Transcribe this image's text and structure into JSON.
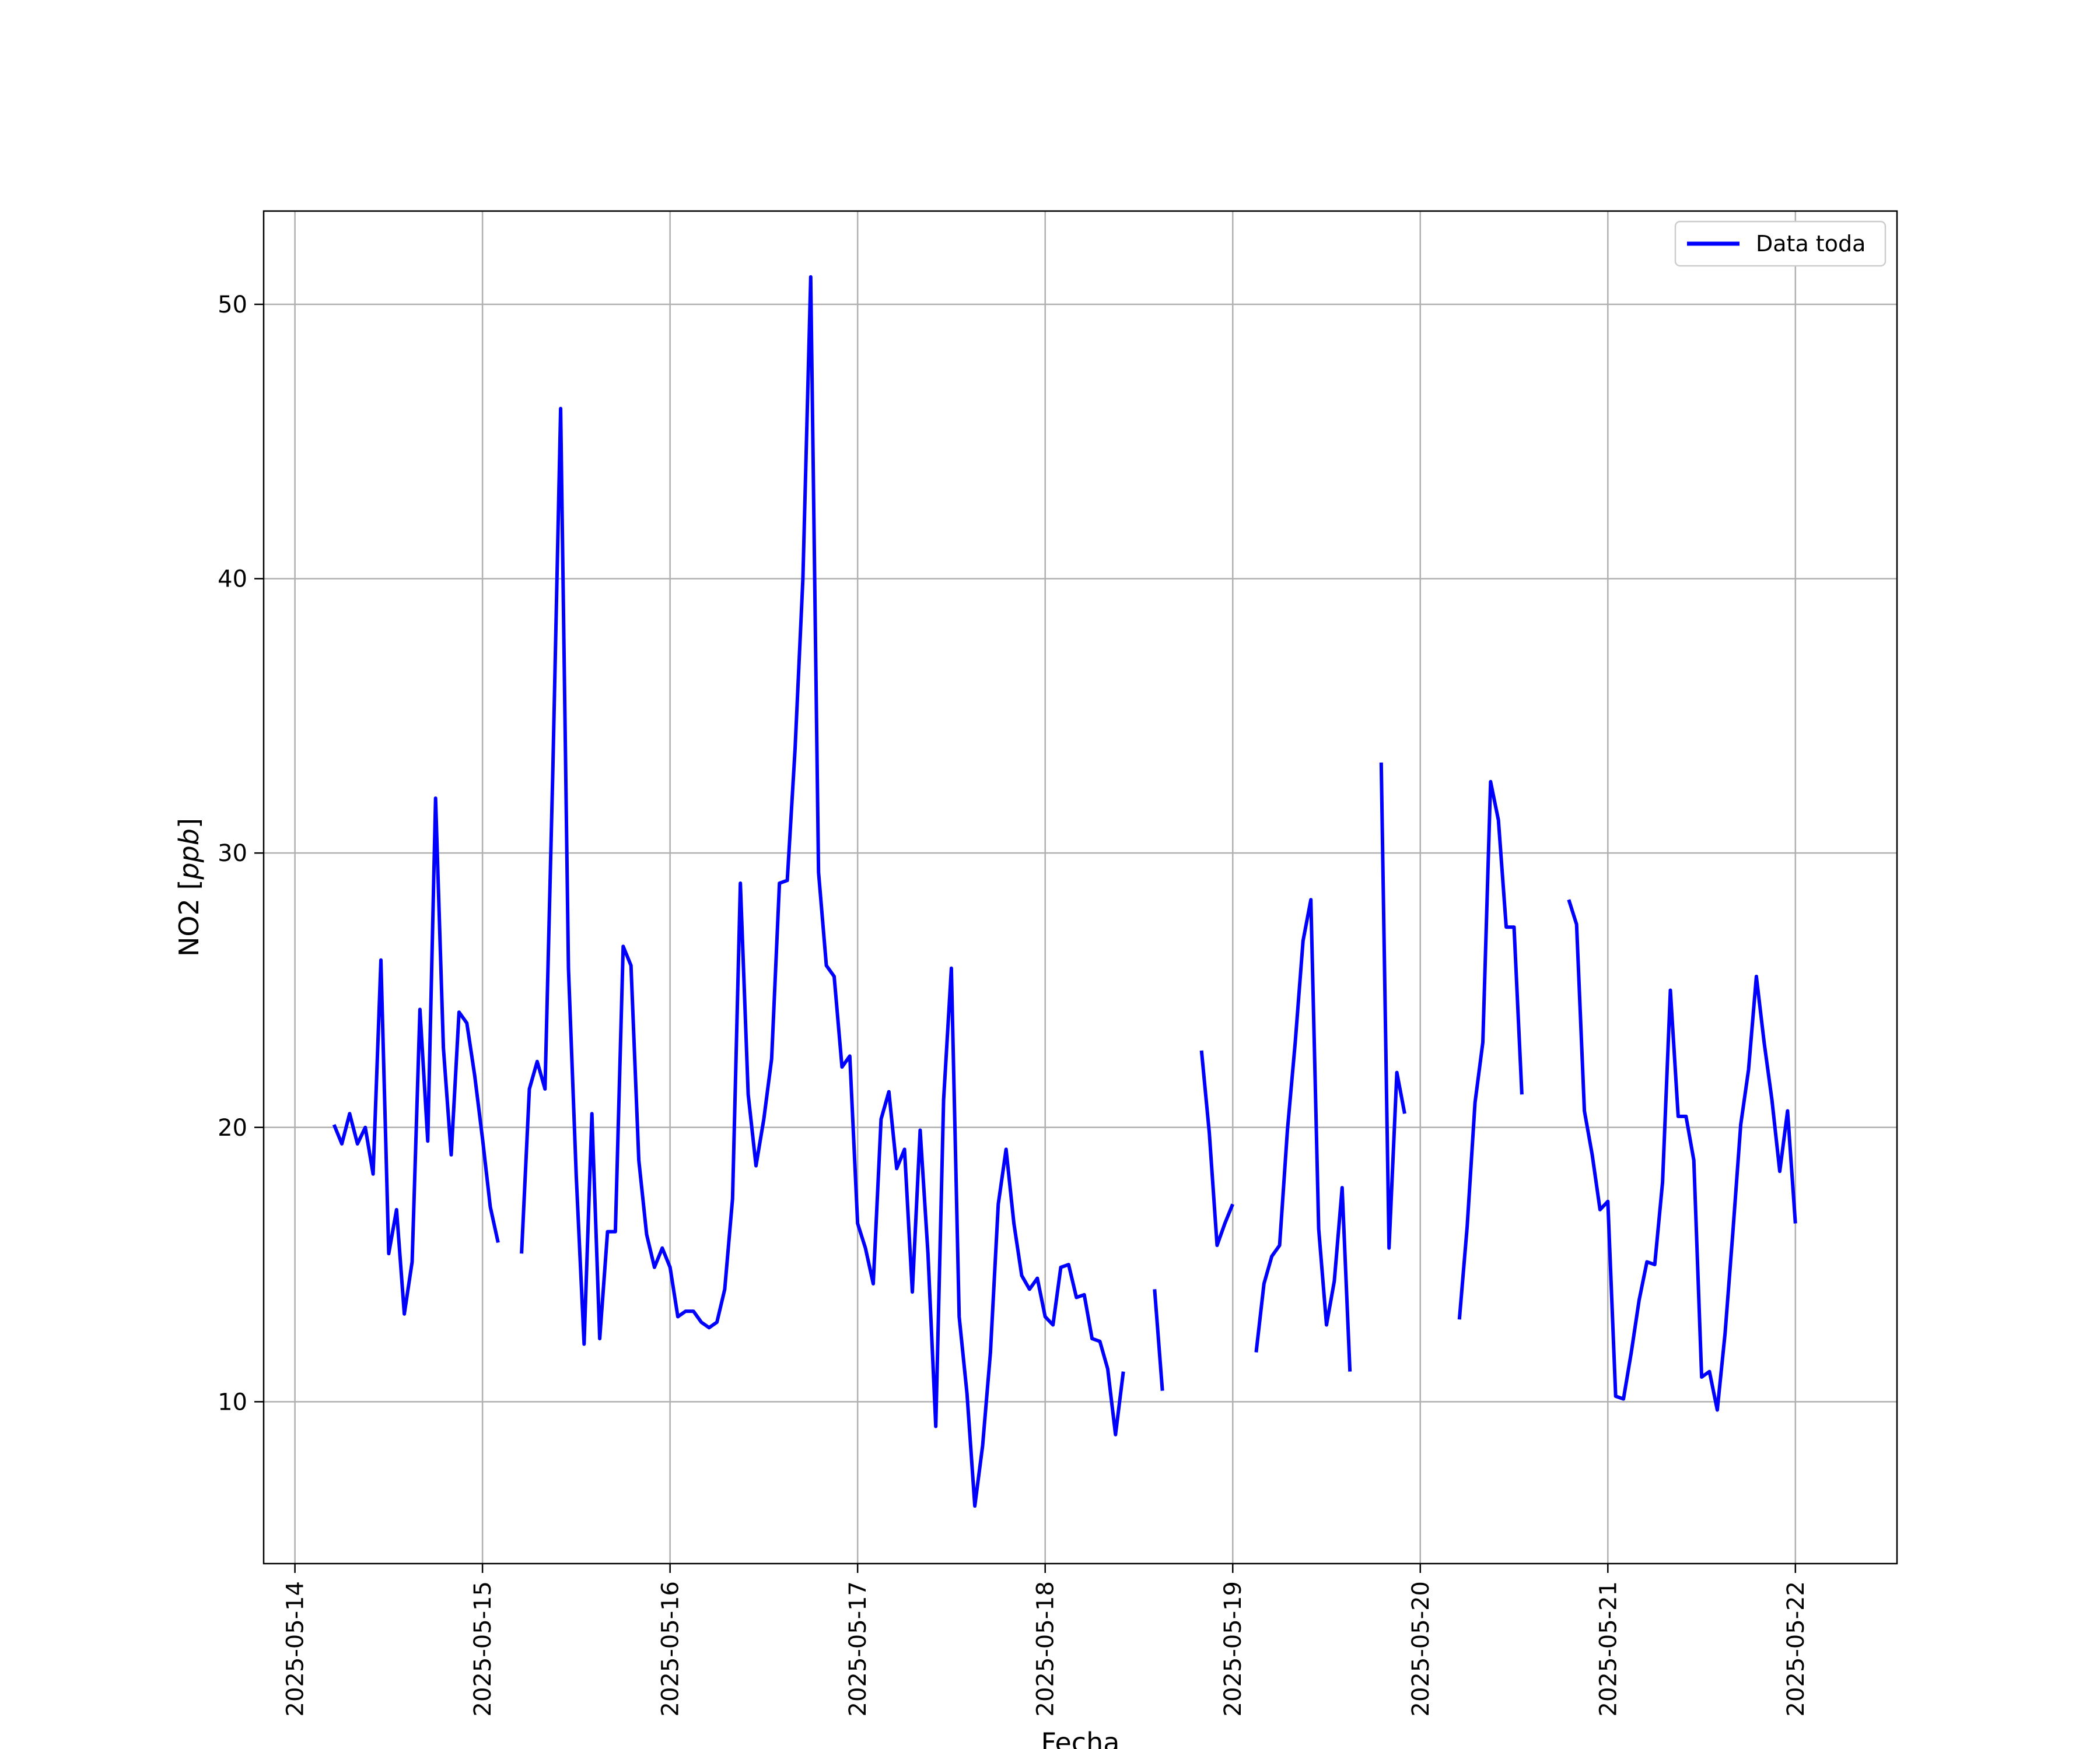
{
  "chart_data": {
    "type": "line",
    "title": "",
    "xlabel": "Fecha",
    "ylabel_parts": [
      "NO2 [",
      "ppb",
      "]"
    ],
    "x_ticks": [
      "2025-05-14",
      "2025-05-15",
      "2025-05-16",
      "2025-05-17",
      "2025-05-18",
      "2025-05-19",
      "2025-05-20",
      "2025-05-21",
      "2025-05-22"
    ],
    "y_ticks": [
      10,
      20,
      30,
      40,
      50
    ],
    "xlim": [
      "2025-05-13T20:00",
      "2025-05-22T13:00"
    ],
    "ylim": [
      4.1,
      53.4
    ],
    "grid": true,
    "legend_position": "top-right",
    "series": [
      {
        "name": "Data toda",
        "color": "#0000ff",
        "segments": [
          [
            [
              "2025-05-14T05:00",
              20.1
            ],
            [
              "2025-05-14T06:00",
              19.4
            ],
            [
              "2025-05-14T07:00",
              20.5
            ],
            [
              "2025-05-14T08:00",
              19.4
            ],
            [
              "2025-05-14T09:00",
              20.0
            ],
            [
              "2025-05-14T10:00",
              18.3
            ],
            [
              "2025-05-14T11:00",
              26.1
            ],
            [
              "2025-05-14T12:00",
              15.4
            ],
            [
              "2025-05-14T13:00",
              17.0
            ],
            [
              "2025-05-14T14:00",
              13.2
            ],
            [
              "2025-05-14T15:00",
              15.1
            ],
            [
              "2025-05-14T16:00",
              24.3
            ],
            [
              "2025-05-14T17:00",
              19.5
            ],
            [
              "2025-05-14T18:00",
              32.0
            ],
            [
              "2025-05-14T19:00",
              22.9
            ],
            [
              "2025-05-14T20:00",
              19.0
            ],
            [
              "2025-05-14T21:00",
              24.2
            ],
            [
              "2025-05-14T22:00",
              23.8
            ],
            [
              "2025-05-14T23:00",
              21.9
            ],
            [
              "2025-05-15T00:00",
              19.6
            ],
            [
              "2025-05-15T01:00",
              17.1
            ],
            [
              "2025-05-15T02:00",
              15.8
            ]
          ],
          [
            [
              "2025-05-15T05:00",
              15.4
            ],
            [
              "2025-05-15T06:00",
              21.4
            ],
            [
              "2025-05-15T07:00",
              22.4
            ],
            [
              "2025-05-15T08:00",
              21.4
            ],
            [
              "2025-05-15T09:00",
              33.0
            ],
            [
              "2025-05-15T10:00",
              46.2
            ],
            [
              "2025-05-15T11:00",
              25.8
            ],
            [
              "2025-05-15T12:00",
              18.2
            ],
            [
              "2025-05-15T13:00",
              12.1
            ],
            [
              "2025-05-15T14:00",
              20.5
            ],
            [
              "2025-05-15T15:00",
              12.3
            ],
            [
              "2025-05-15T16:00",
              16.2
            ],
            [
              "2025-05-15T17:00",
              16.2
            ],
            [
              "2025-05-15T18:00",
              26.6
            ],
            [
              "2025-05-15T19:00",
              25.9
            ],
            [
              "2025-05-15T20:00",
              18.8
            ],
            [
              "2025-05-15T21:00",
              16.1
            ],
            [
              "2025-05-15T22:00",
              14.9
            ],
            [
              "2025-05-15T23:00",
              15.6
            ],
            [
              "2025-05-16T00:00",
              14.9
            ],
            [
              "2025-05-16T01:00",
              13.1
            ],
            [
              "2025-05-16T02:00",
              13.3
            ],
            [
              "2025-05-16T03:00",
              13.3
            ],
            [
              "2025-05-16T04:00",
              12.9
            ],
            [
              "2025-05-16T05:00",
              12.7
            ],
            [
              "2025-05-16T06:00",
              12.9
            ],
            [
              "2025-05-16T07:00",
              14.1
            ],
            [
              "2025-05-16T08:00",
              17.4
            ],
            [
              "2025-05-16T09:00",
              28.9
            ],
            [
              "2025-05-16T10:00",
              21.2
            ],
            [
              "2025-05-16T11:00",
              18.6
            ],
            [
              "2025-05-16T12:00",
              20.3
            ],
            [
              "2025-05-16T13:00",
              22.5
            ],
            [
              "2025-05-16T14:00",
              28.9
            ],
            [
              "2025-05-16T15:00",
              29.0
            ],
            [
              "2025-05-16T16:00",
              33.8
            ],
            [
              "2025-05-16T17:00",
              40.0
            ],
            [
              "2025-05-16T18:00",
              51.0
            ],
            [
              "2025-05-16T19:00",
              29.3
            ],
            [
              "2025-05-16T20:00",
              25.9
            ],
            [
              "2025-05-16T21:00",
              25.5
            ],
            [
              "2025-05-16T22:00",
              22.2
            ],
            [
              "2025-05-16T23:00",
              22.6
            ],
            [
              "2025-05-17T00:00",
              16.5
            ],
            [
              "2025-05-17T01:00",
              15.6
            ],
            [
              "2025-05-17T02:00",
              14.3
            ],
            [
              "2025-05-17T03:00",
              20.3
            ],
            [
              "2025-05-17T04:00",
              21.3
            ],
            [
              "2025-05-17T05:00",
              18.5
            ],
            [
              "2025-05-17T06:00",
              19.2
            ],
            [
              "2025-05-17T07:00",
              14.0
            ],
            [
              "2025-05-17T08:00",
              19.9
            ],
            [
              "2025-05-17T09:00",
              15.4
            ],
            [
              "2025-05-17T10:00",
              9.1
            ],
            [
              "2025-05-17T11:00",
              21.0
            ],
            [
              "2025-05-17T12:00",
              25.8
            ],
            [
              "2025-05-17T13:00",
              13.1
            ],
            [
              "2025-05-17T14:00",
              10.3
            ],
            [
              "2025-05-17T15:00",
              6.2
            ],
            [
              "2025-05-17T16:00",
              8.4
            ],
            [
              "2025-05-17T17:00",
              11.8
            ],
            [
              "2025-05-17T18:00",
              17.2
            ],
            [
              "2025-05-17T19:00",
              19.2
            ],
            [
              "2025-05-17T20:00",
              16.5
            ],
            [
              "2025-05-17T21:00",
              14.6
            ],
            [
              "2025-05-17T22:00",
              14.1
            ],
            [
              "2025-05-17T23:00",
              14.5
            ],
            [
              "2025-05-18T00:00",
              13.1
            ],
            [
              "2025-05-18T01:00",
              12.8
            ],
            [
              "2025-05-18T02:00",
              14.9
            ],
            [
              "2025-05-18T03:00",
              15.0
            ],
            [
              "2025-05-18T04:00",
              13.8
            ],
            [
              "2025-05-18T05:00",
              13.9
            ],
            [
              "2025-05-18T06:00",
              12.3
            ],
            [
              "2025-05-18T07:00",
              12.2
            ],
            [
              "2025-05-18T08:00",
              11.2
            ],
            [
              "2025-05-18T09:00",
              8.8
            ],
            [
              "2025-05-18T10:00",
              11.1
            ]
          ],
          [
            [
              "2025-05-18T14:00",
              14.1
            ],
            [
              "2025-05-18T15:00",
              10.4
            ]
          ],
          [
            [
              "2025-05-18T20:00",
              22.8
            ],
            [
              "2025-05-18T21:00",
              19.8
            ],
            [
              "2025-05-18T22:00",
              15.7
            ],
            [
              "2025-05-18T23:00",
              16.5
            ],
            [
              "2025-05-19T00:00",
              17.2
            ]
          ],
          [
            [
              "2025-05-19T03:00",
              11.8
            ],
            [
              "2025-05-19T04:00",
              14.3
            ],
            [
              "2025-05-19T05:00",
              15.3
            ],
            [
              "2025-05-19T06:00",
              15.7
            ],
            [
              "2025-05-19T07:00",
              19.9
            ],
            [
              "2025-05-19T08:00",
              23.1
            ],
            [
              "2025-05-19T09:00",
              26.8
            ],
            [
              "2025-05-19T10:00",
              28.3
            ],
            [
              "2025-05-19T11:00",
              16.3
            ],
            [
              "2025-05-19T12:00",
              12.8
            ],
            [
              "2025-05-19T13:00",
              14.4
            ],
            [
              "2025-05-19T14:00",
              17.8
            ],
            [
              "2025-05-19T15:00",
              11.1
            ]
          ],
          [
            [
              "2025-05-19T19:00",
              33.3
            ],
            [
              "2025-05-19T20:00",
              15.6
            ],
            [
              "2025-05-19T21:00",
              22.0
            ],
            [
              "2025-05-19T22:00",
              20.5
            ]
          ],
          [
            [
              "2025-05-20T05:00",
              13.0
            ],
            [
              "2025-05-20T06:00",
              16.4
            ],
            [
              "2025-05-20T07:00",
              20.9
            ],
            [
              "2025-05-20T08:00",
              23.1
            ],
            [
              "2025-05-20T09:00",
              32.6
            ],
            [
              "2025-05-20T10:00",
              31.2
            ],
            [
              "2025-05-20T11:00",
              27.3
            ],
            [
              "2025-05-20T12:00",
              27.3
            ],
            [
              "2025-05-20T13:00",
              21.2
            ]
          ],
          [
            [
              "2025-05-20T19:00",
              28.3
            ],
            [
              "2025-05-20T20:00",
              27.4
            ],
            [
              "2025-05-20T21:00",
              20.6
            ],
            [
              "2025-05-20T22:00",
              19.0
            ],
            [
              "2025-05-20T23:00",
              17.0
            ],
            [
              "2025-05-21T00:00",
              17.3
            ],
            [
              "2025-05-21T01:00",
              10.2
            ],
            [
              "2025-05-21T02:00",
              10.1
            ],
            [
              "2025-05-21T03:00",
              11.8
            ],
            [
              "2025-05-21T04:00",
              13.7
            ],
            [
              "2025-05-21T05:00",
              15.1
            ],
            [
              "2025-05-21T06:00",
              15.0
            ],
            [
              "2025-05-21T07:00",
              18.0
            ],
            [
              "2025-05-21T08:00",
              25.0
            ],
            [
              "2025-05-21T09:00",
              20.4
            ],
            [
              "2025-05-21T10:00",
              20.4
            ],
            [
              "2025-05-21T11:00",
              18.8
            ],
            [
              "2025-05-21T12:00",
              10.9
            ],
            [
              "2025-05-21T13:00",
              11.1
            ],
            [
              "2025-05-21T14:00",
              9.7
            ],
            [
              "2025-05-21T15:00",
              12.5
            ],
            [
              "2025-05-21T16:00",
              16.2
            ],
            [
              "2025-05-21T17:00",
              20.1
            ],
            [
              "2025-05-21T18:00",
              22.1
            ],
            [
              "2025-05-21T19:00",
              25.5
            ],
            [
              "2025-05-21T20:00",
              23.1
            ],
            [
              "2025-05-21T21:00",
              21.0
            ],
            [
              "2025-05-21T22:00",
              18.4
            ],
            [
              "2025-05-21T23:00",
              20.6
            ],
            [
              "2025-05-22T00:00",
              16.5
            ]
          ]
        ]
      }
    ]
  }
}
